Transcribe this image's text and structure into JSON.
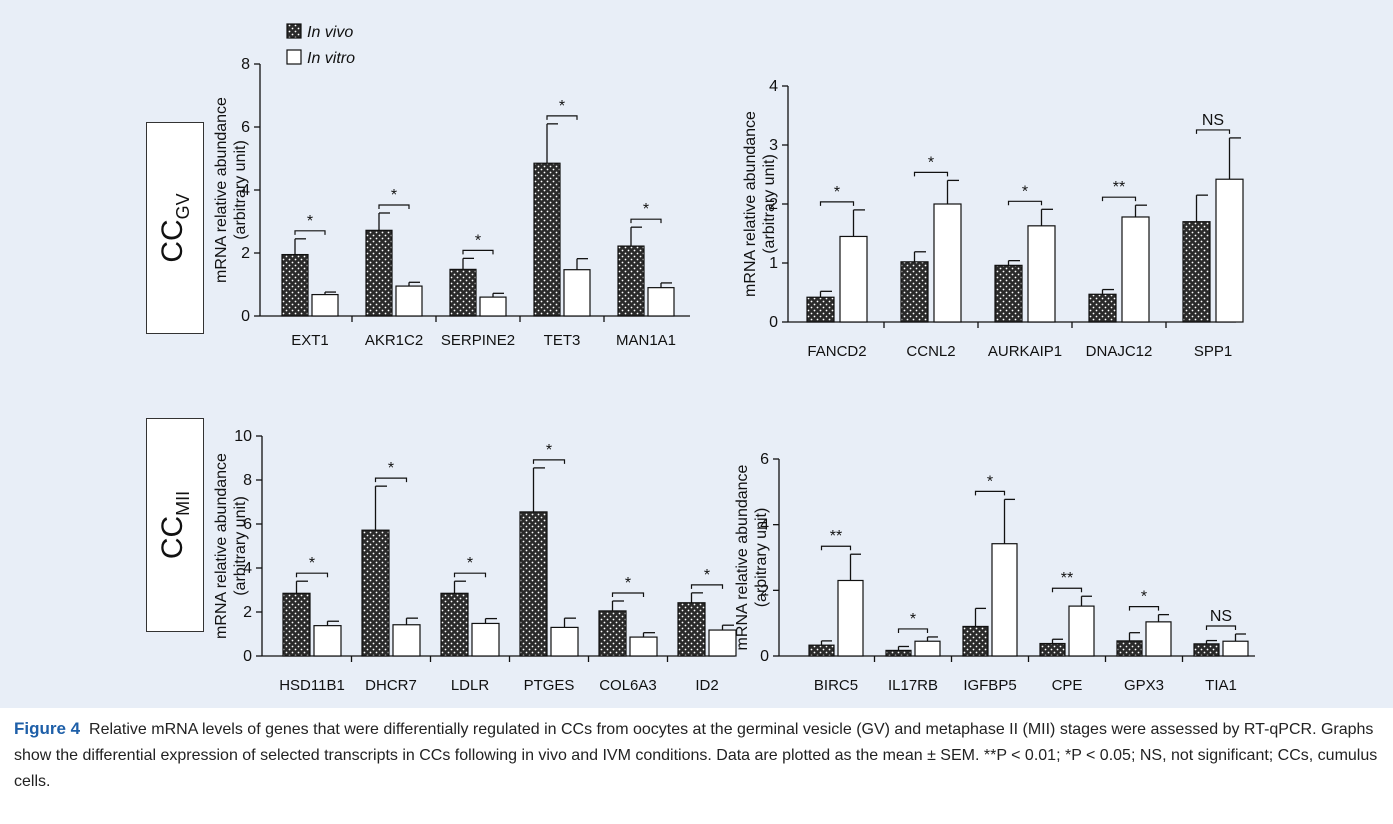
{
  "figure": {
    "row_labels": [
      {
        "main": "CC",
        "sub": "GV"
      },
      {
        "main": "CC",
        "sub": "MII"
      }
    ],
    "legend": [
      {
        "label": "In vivo",
        "fill": "dotted"
      },
      {
        "label": "In vitro",
        "fill": "white"
      }
    ],
    "caption": {
      "label": "Figure 4",
      "text": "Relative mRNA levels of genes that were differentially regulated in CCs from oocytes at the germinal vesicle (GV) and metaphase II (MII) stages were assessed by RT-qPCR. Graphs show the differential expression of selected transcripts in CCs following in vivo and IVM conditions. Data are plotted as the mean ± SEM. **P < 0.01; *P < 0.05; NS, not significant; CCs, cumulus cells."
    }
  },
  "colors": {
    "panel_background": "#e8eef7",
    "caption_label": "#1e5fa8",
    "in_vivo_fill": "#2a2a2a",
    "in_vitro_fill": "#ffffff"
  },
  "chart_data": [
    {
      "type": "bar",
      "panel": "CC GV left",
      "ylabel": "mRNA relative abundance (arbitrary unit)",
      "ylim": [
        0,
        8
      ],
      "yticks": [
        0,
        2,
        4,
        6,
        8
      ],
      "categories": [
        "EXT1",
        "AKR1C2",
        "SERPINE2",
        "TET3",
        "MAN1A1"
      ],
      "series": [
        {
          "name": "In vivo",
          "values": [
            1.95,
            2.72,
            1.48,
            4.85,
            2.22
          ],
          "errors": [
            0.5,
            0.55,
            0.35,
            1.25,
            0.6
          ]
        },
        {
          "name": "In vitro",
          "values": [
            0.68,
            0.95,
            0.6,
            1.47,
            0.9
          ],
          "errors": [
            0.08,
            0.12,
            0.12,
            0.35,
            0.15
          ]
        }
      ],
      "significance": [
        "*",
        "*",
        "*",
        "*",
        "*"
      ]
    },
    {
      "type": "bar",
      "panel": "CC GV right",
      "ylabel": "mRNA relative abundance (arbitrary unit)",
      "ylim": [
        0,
        4
      ],
      "yticks": [
        0,
        1,
        2,
        3,
        4
      ],
      "categories": [
        "FANCD2",
        "CCNL2",
        "AURKAIP1",
        "DNAJC12",
        "SPP1"
      ],
      "series": [
        {
          "name": "In vivo",
          "values": [
            0.42,
            1.02,
            0.96,
            0.47,
            1.7
          ],
          "errors": [
            0.1,
            0.17,
            0.08,
            0.08,
            0.45
          ]
        },
        {
          "name": "In vitro",
          "values": [
            1.45,
            2.0,
            1.63,
            1.78,
            2.42
          ],
          "errors": [
            0.45,
            0.4,
            0.28,
            0.2,
            0.7
          ]
        }
      ],
      "significance": [
        "*",
        "*",
        "*",
        "**",
        "NS"
      ]
    },
    {
      "type": "bar",
      "panel": "CC MII left",
      "ylabel": "mRNA relative abundance (arbitrary unit)",
      "ylim": [
        0,
        10
      ],
      "yticks": [
        0,
        2,
        4,
        6,
        8,
        10
      ],
      "categories": [
        "HSD11B1",
        "DHCR7",
        "LDLR",
        "PTGES",
        "COL6A3",
        "ID2"
      ],
      "series": [
        {
          "name": "In vivo",
          "values": [
            2.85,
            5.72,
            2.85,
            6.55,
            2.05,
            2.42
          ],
          "errors": [
            0.55,
            2.0,
            0.55,
            2.0,
            0.45,
            0.45
          ]
        },
        {
          "name": "In vitro",
          "values": [
            1.38,
            1.42,
            1.48,
            1.3,
            0.86,
            1.18
          ],
          "errors": [
            0.2,
            0.3,
            0.22,
            0.42,
            0.2,
            0.22
          ]
        }
      ],
      "significance": [
        "*",
        "*",
        "*",
        "*",
        "*",
        "*"
      ]
    },
    {
      "type": "bar",
      "panel": "CC MII right",
      "ylabel": "mRNA relative abundance (arbitrary unit)",
      "ylim": [
        0,
        6
      ],
      "yticks": [
        0,
        2,
        4,
        6
      ],
      "categories": [
        "BIRC5",
        "IL17RB",
        "IGFBP5",
        "CPE",
        "GPX3",
        "TIA1"
      ],
      "series": [
        {
          "name": "In vivo",
          "values": [
            0.33,
            0.17,
            0.9,
            0.38,
            0.46,
            0.37
          ],
          "errors": [
            0.13,
            0.12,
            0.55,
            0.13,
            0.25,
            0.1
          ]
        },
        {
          "name": "In vitro",
          "values": [
            2.3,
            0.45,
            3.42,
            1.52,
            1.04,
            0.45
          ],
          "errors": [
            0.8,
            0.13,
            1.35,
            0.3,
            0.22,
            0.22
          ]
        }
      ],
      "significance": [
        "**",
        "*",
        "*",
        "**",
        "*",
        "NS"
      ]
    }
  ]
}
